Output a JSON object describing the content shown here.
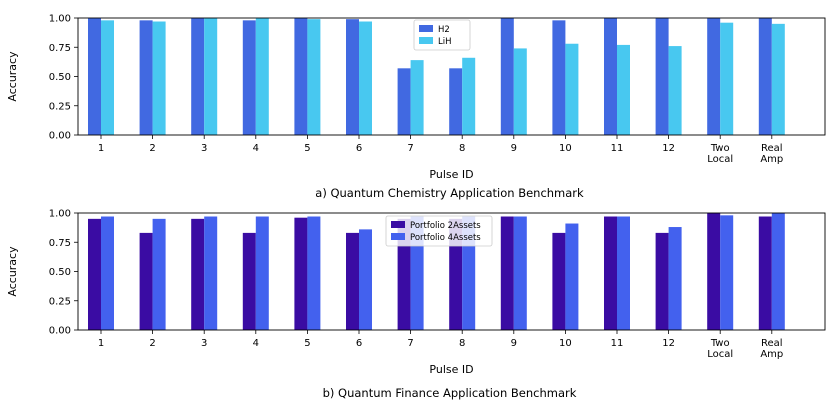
{
  "chart_data": [
    {
      "type": "bar",
      "caption": "a) Quantum Chemistry Application Benchmark",
      "xlabel": "Pulse ID",
      "ylabel": "Accuracy",
      "ylim": [
        0,
        1
      ],
      "yticks": [
        "0.00",
        "0.25",
        "0.50",
        "0.75",
        "1.00"
      ],
      "categories": [
        "1",
        "2",
        "3",
        "4",
        "5",
        "6",
        "7",
        "8",
        "9",
        "10",
        "11",
        "12",
        "Two\nLocal",
        "Real\nAmp"
      ],
      "legend_position": "top-center",
      "series": [
        {
          "name": "H2",
          "color": "#4169e1",
          "values": [
            1.0,
            0.98,
            1.0,
            0.98,
            1.0,
            0.99,
            0.57,
            0.57,
            1.0,
            0.98,
            1.0,
            1.0,
            1.0,
            1.0
          ]
        },
        {
          "name": "LiH",
          "color": "#48c8f0",
          "values": [
            0.98,
            0.97,
            1.0,
            1.0,
            0.99,
            0.97,
            0.64,
            0.66,
            0.74,
            0.78,
            0.77,
            0.76,
            0.96,
            0.95
          ]
        }
      ]
    },
    {
      "type": "bar",
      "caption": "b) Quantum Finance Application Benchmark",
      "xlabel": "Pulse ID",
      "ylabel": "Accuracy",
      "ylim": [
        0,
        1
      ],
      "yticks": [
        "0.00",
        "0.25",
        "0.50",
        "0.75",
        "1.00"
      ],
      "categories": [
        "1",
        "2",
        "3",
        "4",
        "5",
        "6",
        "7",
        "8",
        "9",
        "10",
        "11",
        "12",
        "Two\nLocal",
        "Real\nAmp"
      ],
      "legend_position": "top-center",
      "series": [
        {
          "name": "Portfolio 2Assets",
          "color": "#3a0ca3",
          "values": [
            0.95,
            0.83,
            0.95,
            0.83,
            0.96,
            0.83,
            0.95,
            0.95,
            0.97,
            0.83,
            0.97,
            0.83,
            1.0,
            0.97
          ]
        },
        {
          "name": "Portfolio 4Assets",
          "color": "#4361ee",
          "values": [
            0.97,
            0.95,
            0.97,
            0.97,
            0.97,
            0.86,
            0.97,
            0.97,
            0.97,
            0.91,
            0.97,
            0.88,
            0.98,
            1.0
          ]
        }
      ]
    }
  ]
}
